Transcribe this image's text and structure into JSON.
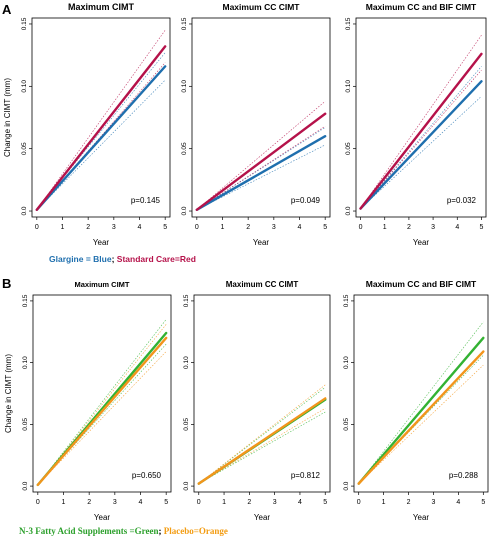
{
  "panel_labels": {
    "a": "A",
    "b": "B"
  },
  "legends": {
    "a": {
      "blue_text": "Glargine = Blue",
      "sep": "; ",
      "red_text": "Standard Care=Red",
      "blue_color": "#1f6fae",
      "red_color": "#b5124a"
    },
    "b": {
      "green_text": "N-3 Fatty Acid Supplements =Green",
      "sep": "; ",
      "orange_text": "Placebo=Orange",
      "green_color": "#2ca02c",
      "orange_color": "#f39c12"
    }
  },
  "colors": {
    "blue": "#1f6fae",
    "red": "#b5124a",
    "green": "#33b233",
    "orange": "#f2951c"
  },
  "chart_data": [
    {
      "type": "line",
      "row": "A",
      "title": "Maximum CIMT",
      "ylabel": "Change in CIMT (mm)",
      "xlabel": "Year",
      "xlim": [
        0,
        5
      ],
      "ylim": [
        0,
        0.15
      ],
      "xticks": [
        "0",
        "1",
        "2",
        "3",
        "4",
        "5"
      ],
      "yticks": [
        "0.0",
        "0.05",
        "0.10",
        "0.15"
      ],
      "annotation": "p=0.145",
      "series": [
        {
          "color": "blue",
          "x": [
            0,
            5
          ],
          "y": [
            0.001,
            0.116
          ],
          "ci_low": [
            0.001,
            0.105
          ],
          "ci_high": [
            0.001,
            0.127
          ]
        },
        {
          "color": "red",
          "x": [
            0,
            5
          ],
          "y": [
            0.001,
            0.132
          ],
          "ci_low": [
            0.001,
            0.119
          ],
          "ci_high": [
            0.001,
            0.145
          ]
        }
      ]
    },
    {
      "type": "line",
      "row": "A",
      "title": "Maximum CC CIMT",
      "ylabel": "",
      "xlabel": "Year",
      "xlim": [
        0,
        5
      ],
      "ylim": [
        0,
        0.15
      ],
      "xticks": [
        "0",
        "1",
        "2",
        "3",
        "4",
        "5"
      ],
      "yticks": [
        "0.0",
        "0.05",
        "0.10",
        "0.15"
      ],
      "annotation": "p=0.049",
      "series": [
        {
          "color": "blue",
          "x": [
            0,
            5
          ],
          "y": [
            0.001,
            0.06
          ],
          "ci_low": [
            0.001,
            0.053
          ],
          "ci_high": [
            0.001,
            0.067
          ]
        },
        {
          "color": "red",
          "x": [
            0,
            5
          ],
          "y": [
            0.001,
            0.078
          ],
          "ci_low": [
            0.001,
            0.068
          ],
          "ci_high": [
            0.001,
            0.088
          ]
        }
      ]
    },
    {
      "type": "line",
      "row": "A",
      "title": "Maximum CC and BIF CIMT",
      "ylabel": "",
      "xlabel": "Year",
      "xlim": [
        0,
        5
      ],
      "ylim": [
        0,
        0.15
      ],
      "xticks": [
        "0",
        "1",
        "2",
        "3",
        "4",
        "5"
      ],
      "yticks": [
        "0.0",
        "0.05",
        "0.10",
        "0.15"
      ],
      "annotation": "p=0.032",
      "series": [
        {
          "color": "blue",
          "x": [
            0,
            5
          ],
          "y": [
            0.002,
            0.104
          ],
          "ci_low": [
            0.002,
            0.092
          ],
          "ci_high": [
            0.002,
            0.116
          ]
        },
        {
          "color": "red",
          "x": [
            0,
            5
          ],
          "y": [
            0.002,
            0.126
          ],
          "ci_low": [
            0.002,
            0.113
          ],
          "ci_high": [
            0.002,
            0.141
          ]
        }
      ]
    },
    {
      "type": "line",
      "row": "B",
      "title": "Maximum CIMT",
      "ylabel": "Change in CIMT (mm)",
      "xlabel": "Year",
      "xlim": [
        0,
        5
      ],
      "ylim": [
        0,
        0.15
      ],
      "xticks": [
        "0",
        "1",
        "2",
        "3",
        "4",
        "5"
      ],
      "yticks": [
        "0.0",
        "0.05",
        "0.10",
        "0.15"
      ],
      "annotation": "p=0.650",
      "series": [
        {
          "color": "green",
          "x": [
            0,
            5
          ],
          "y": [
            0.001,
            0.124
          ],
          "ci_low": [
            0.001,
            0.115
          ],
          "ci_high": [
            0.001,
            0.135
          ]
        },
        {
          "color": "orange",
          "x": [
            0,
            5
          ],
          "y": [
            0.001,
            0.12
          ],
          "ci_low": [
            0.001,
            0.109
          ],
          "ci_high": [
            0.001,
            0.131
          ]
        }
      ]
    },
    {
      "type": "line",
      "row": "B",
      "title": "Maximum CC CIMT",
      "ylabel": "",
      "xlabel": "Year",
      "xlim": [
        0,
        5
      ],
      "ylim": [
        0,
        0.15
      ],
      "xticks": [
        "0",
        "1",
        "2",
        "3",
        "4",
        "5"
      ],
      "yticks": [
        "0.0",
        "0.05",
        "0.10",
        "0.15"
      ],
      "annotation": "p=0.812",
      "series": [
        {
          "color": "green",
          "x": [
            0,
            5
          ],
          "y": [
            0.002,
            0.07
          ],
          "ci_low": [
            0.002,
            0.06
          ],
          "ci_high": [
            0.002,
            0.08
          ]
        },
        {
          "color": "orange",
          "x": [
            0,
            5
          ],
          "y": [
            0.002,
            0.071
          ],
          "ci_low": [
            0.002,
            0.063
          ],
          "ci_high": [
            0.002,
            0.082
          ]
        }
      ]
    },
    {
      "type": "line",
      "row": "B",
      "title": "Maximum CC and BIF CIMT",
      "ylabel": "",
      "xlabel": "Year",
      "xlim": [
        0,
        5
      ],
      "ylim": [
        0,
        0.15
      ],
      "xticks": [
        "0",
        "1",
        "2",
        "3",
        "4",
        "5"
      ],
      "yticks": [
        "0.0",
        "0.05",
        "0.10",
        "0.15"
      ],
      "annotation": "p=0.288",
      "series": [
        {
          "color": "green",
          "x": [
            0,
            5
          ],
          "y": [
            0.002,
            0.12
          ],
          "ci_low": [
            0.002,
            0.106
          ],
          "ci_high": [
            0.002,
            0.133
          ]
        },
        {
          "color": "orange",
          "x": [
            0,
            5
          ],
          "y": [
            0.002,
            0.109
          ],
          "ci_low": [
            0.002,
            0.098
          ],
          "ci_high": [
            0.002,
            0.121
          ]
        }
      ]
    }
  ]
}
